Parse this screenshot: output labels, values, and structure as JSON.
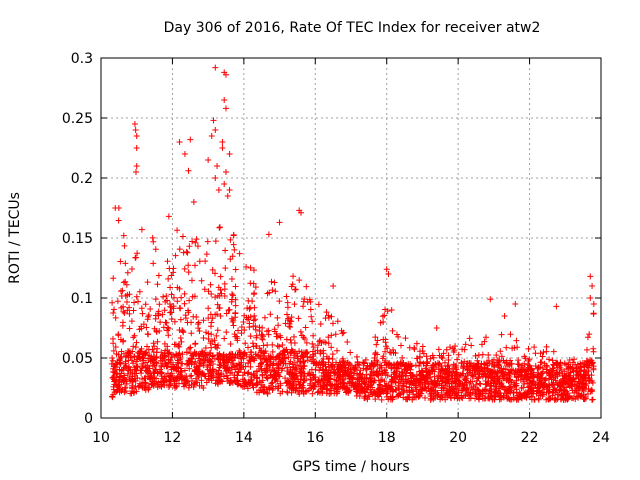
{
  "chart_data": {
    "type": "scatter",
    "title": "Day 306 of 2016, Rate Of TEC Index for receiver atw2",
    "xlabel": "GPS time / hours",
    "ylabel": "ROTI / TECUs",
    "xlim": [
      10,
      24
    ],
    "ylim": [
      0,
      0.3
    ],
    "grid": true,
    "marker": "+",
    "color": "#ff0000",
    "x_ticks": [
      "10",
      "12",
      "14",
      "16",
      "18",
      "20",
      "22",
      "24"
    ],
    "y_ticks": [
      "0",
      "0.05",
      "0.1",
      "0.15",
      "0.2",
      "0.25",
      "0.3"
    ],
    "envelope": [
      {
        "x": 10.3,
        "base": 0.015,
        "peak": 0.12
      },
      {
        "x": 10.5,
        "base": 0.02,
        "peak": 0.17
      },
      {
        "x": 11.0,
        "base": 0.02,
        "peak": 0.16
      },
      {
        "x": 11.5,
        "base": 0.025,
        "peak": 0.15
      },
      {
        "x": 12.0,
        "base": 0.025,
        "peak": 0.16
      },
      {
        "x": 12.5,
        "base": 0.025,
        "peak": 0.15
      },
      {
        "x": 13.0,
        "base": 0.025,
        "peak": 0.17
      },
      {
        "x": 13.5,
        "base": 0.03,
        "peak": 0.17
      },
      {
        "x": 14.0,
        "base": 0.025,
        "peak": 0.13
      },
      {
        "x": 14.5,
        "base": 0.02,
        "peak": 0.12
      },
      {
        "x": 15.0,
        "base": 0.02,
        "peak": 0.12
      },
      {
        "x": 15.5,
        "base": 0.02,
        "peak": 0.13
      },
      {
        "x": 16.0,
        "base": 0.02,
        "peak": 0.1
      },
      {
        "x": 16.5,
        "base": 0.02,
        "peak": 0.09
      },
      {
        "x": 17.0,
        "base": 0.02,
        "peak": 0.06
      },
      {
        "x": 17.5,
        "base": 0.015,
        "peak": 0.05
      },
      {
        "x": 18.0,
        "base": 0.015,
        "peak": 0.1
      },
      {
        "x": 18.5,
        "base": 0.015,
        "peak": 0.07
      },
      {
        "x": 19.0,
        "base": 0.015,
        "peak": 0.06
      },
      {
        "x": 19.5,
        "base": 0.015,
        "peak": 0.06
      },
      {
        "x": 20.0,
        "base": 0.015,
        "peak": 0.06
      },
      {
        "x": 20.5,
        "base": 0.015,
        "peak": 0.07
      },
      {
        "x": 21.0,
        "base": 0.015,
        "peak": 0.07
      },
      {
        "x": 21.5,
        "base": 0.015,
        "peak": 0.07
      },
      {
        "x": 22.0,
        "base": 0.015,
        "peak": 0.06
      },
      {
        "x": 22.5,
        "base": 0.015,
        "peak": 0.06
      },
      {
        "x": 23.0,
        "base": 0.015,
        "peak": 0.05
      },
      {
        "x": 23.5,
        "base": 0.015,
        "peak": 0.05
      },
      {
        "x": 23.8,
        "base": 0.015,
        "peak": 0.1
      }
    ],
    "outliers": [
      {
        "x": 10.95,
        "y": 0.245
      },
      {
        "x": 10.97,
        "y": 0.24
      },
      {
        "x": 11.0,
        "y": 0.235
      },
      {
        "x": 11.0,
        "y": 0.225
      },
      {
        "x": 10.98,
        "y": 0.205
      },
      {
        "x": 11.0,
        "y": 0.21
      },
      {
        "x": 12.2,
        "y": 0.23
      },
      {
        "x": 12.35,
        "y": 0.22
      },
      {
        "x": 12.5,
        "y": 0.232
      },
      {
        "x": 12.45,
        "y": 0.206
      },
      {
        "x": 13.1,
        "y": 0.235
      },
      {
        "x": 13.2,
        "y": 0.292
      },
      {
        "x": 13.45,
        "y": 0.288
      },
      {
        "x": 13.5,
        "y": 0.286
      },
      {
        "x": 13.45,
        "y": 0.265
      },
      {
        "x": 13.5,
        "y": 0.258
      },
      {
        "x": 13.2,
        "y": 0.24
      },
      {
        "x": 13.15,
        "y": 0.248
      },
      {
        "x": 13.4,
        "y": 0.23
      },
      {
        "x": 13.4,
        "y": 0.225
      },
      {
        "x": 13.6,
        "y": 0.22
      },
      {
        "x": 13.5,
        "y": 0.205
      },
      {
        "x": 13.2,
        "y": 0.2
      },
      {
        "x": 13.3,
        "y": 0.19
      },
      {
        "x": 13.55,
        "y": 0.185
      },
      {
        "x": 13.6,
        "y": 0.19
      },
      {
        "x": 13.45,
        "y": 0.195
      },
      {
        "x": 13.25,
        "y": 0.21
      },
      {
        "x": 13.0,
        "y": 0.215
      },
      {
        "x": 15.55,
        "y": 0.173
      },
      {
        "x": 15.6,
        "y": 0.171
      },
      {
        "x": 15.0,
        "y": 0.163
      },
      {
        "x": 18.0,
        "y": 0.124
      },
      {
        "x": 18.05,
        "y": 0.12
      },
      {
        "x": 20.9,
        "y": 0.099
      },
      {
        "x": 21.6,
        "y": 0.095
      },
      {
        "x": 22.75,
        "y": 0.093
      },
      {
        "x": 23.7,
        "y": 0.118
      },
      {
        "x": 23.75,
        "y": 0.11
      },
      {
        "x": 23.7,
        "y": 0.1
      },
      {
        "x": 23.8,
        "y": 0.095
      },
      {
        "x": 10.4,
        "y": 0.175
      },
      {
        "x": 10.5,
        "y": 0.175
      },
      {
        "x": 11.9,
        "y": 0.168
      },
      {
        "x": 12.6,
        "y": 0.18
      },
      {
        "x": 14.7,
        "y": 0.153
      },
      {
        "x": 16.5,
        "y": 0.11
      },
      {
        "x": 21.3,
        "y": 0.085
      },
      {
        "x": 19.4,
        "y": 0.075
      },
      {
        "x": 17.9,
        "y": 0.08
      }
    ]
  }
}
